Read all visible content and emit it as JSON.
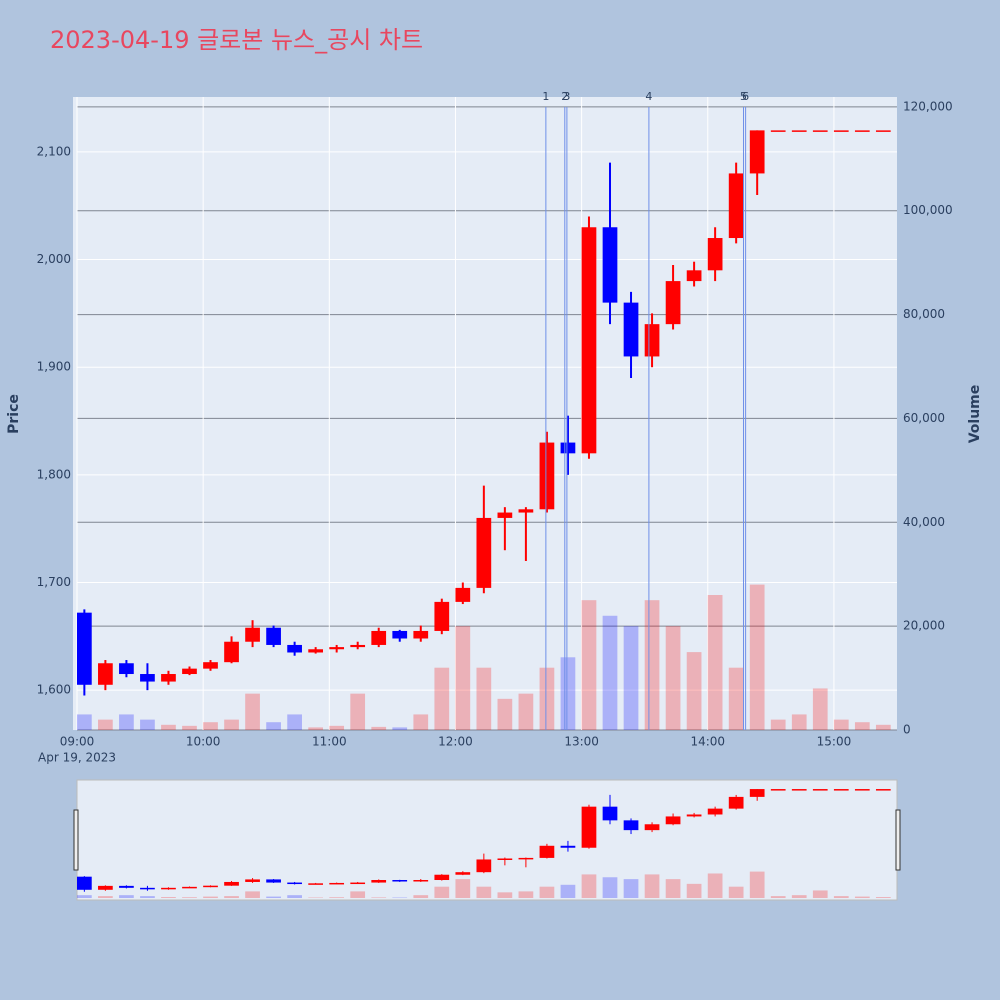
{
  "chart_data": {
    "type": "candlestick",
    "title": "2023-04-19 글로본 뉴스_공시 차트",
    "x_date_label": "Apr 19, 2023",
    "y_label": "Price",
    "y2_label": "Volume",
    "x": [
      "09:00",
      "09:10",
      "09:20",
      "09:30",
      "09:40",
      "09:50",
      "10:00",
      "10:10",
      "10:20",
      "10:30",
      "10:40",
      "10:50",
      "11:00",
      "11:10",
      "11:20",
      "11:30",
      "11:40",
      "11:50",
      "12:00",
      "12:10",
      "12:20",
      "12:30",
      "12:40",
      "12:50",
      "13:00",
      "13:10",
      "13:20",
      "13:30",
      "13:40",
      "13:50",
      "14:00",
      "14:10",
      "14:20",
      "14:30",
      "14:40",
      "14:50",
      "15:00",
      "15:10",
      "15:20"
    ],
    "open": [
      1672,
      1605,
      1625,
      1615,
      1608,
      1615,
      1620,
      1626,
      1645,
      1658,
      1642,
      1635,
      1638,
      1640,
      1642,
      1655,
      1648,
      1655,
      1682,
      1695,
      1760,
      1765,
      1768,
      1830,
      1820,
      2030,
      1960,
      1910,
      1940,
      1980,
      1990,
      2020,
      2080,
      2120,
      2120,
      2120,
      2120,
      2120,
      2120
    ],
    "high": [
      1675,
      1628,
      1628,
      1625,
      1618,
      1622,
      1628,
      1650,
      1665,
      1660,
      1645,
      1640,
      1642,
      1645,
      1658,
      1656,
      1660,
      1685,
      1700,
      1790,
      1770,
      1770,
      1840,
      1855,
      2040,
      2090,
      1970,
      1950,
      1995,
      1998,
      2030,
      2090,
      2120,
      2120,
      2120,
      2120,
      2120,
      2120,
      2120
    ],
    "low": [
      1595,
      1600,
      1612,
      1600,
      1605,
      1614,
      1618,
      1625,
      1640,
      1640,
      1632,
      1634,
      1635,
      1638,
      1640,
      1645,
      1645,
      1652,
      1680,
      1690,
      1730,
      1720,
      1765,
      1800,
      1815,
      1940,
      1890,
      1900,
      1935,
      1975,
      1980,
      2015,
      2060,
      2120,
      2120,
      2120,
      2120,
      2120,
      2120
    ],
    "close": [
      1605,
      1625,
      1615,
      1608,
      1615,
      1620,
      1626,
      1645,
      1658,
      1642,
      1635,
      1638,
      1640,
      1642,
      1655,
      1648,
      1655,
      1682,
      1695,
      1760,
      1765,
      1768,
      1830,
      1820,
      2030,
      1960,
      1910,
      1940,
      1980,
      1990,
      2020,
      2080,
      2120,
      2120,
      2120,
      2120,
      2120,
      2120,
      2120
    ],
    "volume": [
      3000,
      2000,
      3000,
      2000,
      1000,
      800,
      1500,
      2000,
      7000,
      1500,
      3000,
      500,
      800,
      7000,
      600,
      500,
      3000,
      12000,
      20000,
      12000,
      6000,
      7000,
      12000,
      14000,
      25000,
      22000,
      20000,
      25000,
      20000,
      15000,
      26000,
      12000,
      28000,
      2000,
      3000,
      8000,
      2000,
      1500,
      1000
    ],
    "up_color": "#ff0000",
    "down_color": "#0000ff",
    "xlim": [
      "09:00",
      "15:30"
    ],
    "xticks": [
      "09:00",
      "10:00",
      "11:00",
      "12:00",
      "13:00",
      "14:00",
      "15:00"
    ],
    "ylim": [
      1563,
      2151
    ],
    "yticks": [
      {
        "value": 1600,
        "label": "1,600"
      },
      {
        "value": 1700,
        "label": "1,700"
      },
      {
        "value": 1800,
        "label": "1,800"
      },
      {
        "value": 1900,
        "label": "1,900"
      },
      {
        "value": 2000,
        "label": "2,000"
      },
      {
        "value": 2100,
        "label": "2,100"
      }
    ],
    "y2lim": [
      0,
      121900
    ],
    "y2ticks": [
      0,
      {
        "value": 20000,
        "label": "20,000"
      },
      {
        "value": 40000,
        "label": "40,000"
      },
      {
        "value": 60000,
        "label": "60,000"
      },
      {
        "value": 80000,
        "label": "80,000"
      },
      {
        "value": 100000,
        "label": "100,000"
      },
      {
        "value": 120000,
        "label": "120,000"
      }
    ],
    "grid": true,
    "news": {
      "labels": [
        "1",
        "2",
        "3",
        "4",
        "5",
        "6"
      ],
      "x": [
        "12:43",
        "12:52",
        "12:53",
        "13:32",
        "14:17",
        "14:18"
      ]
    },
    "news_color": "#6f8fe8",
    "rangeslider": true
  }
}
